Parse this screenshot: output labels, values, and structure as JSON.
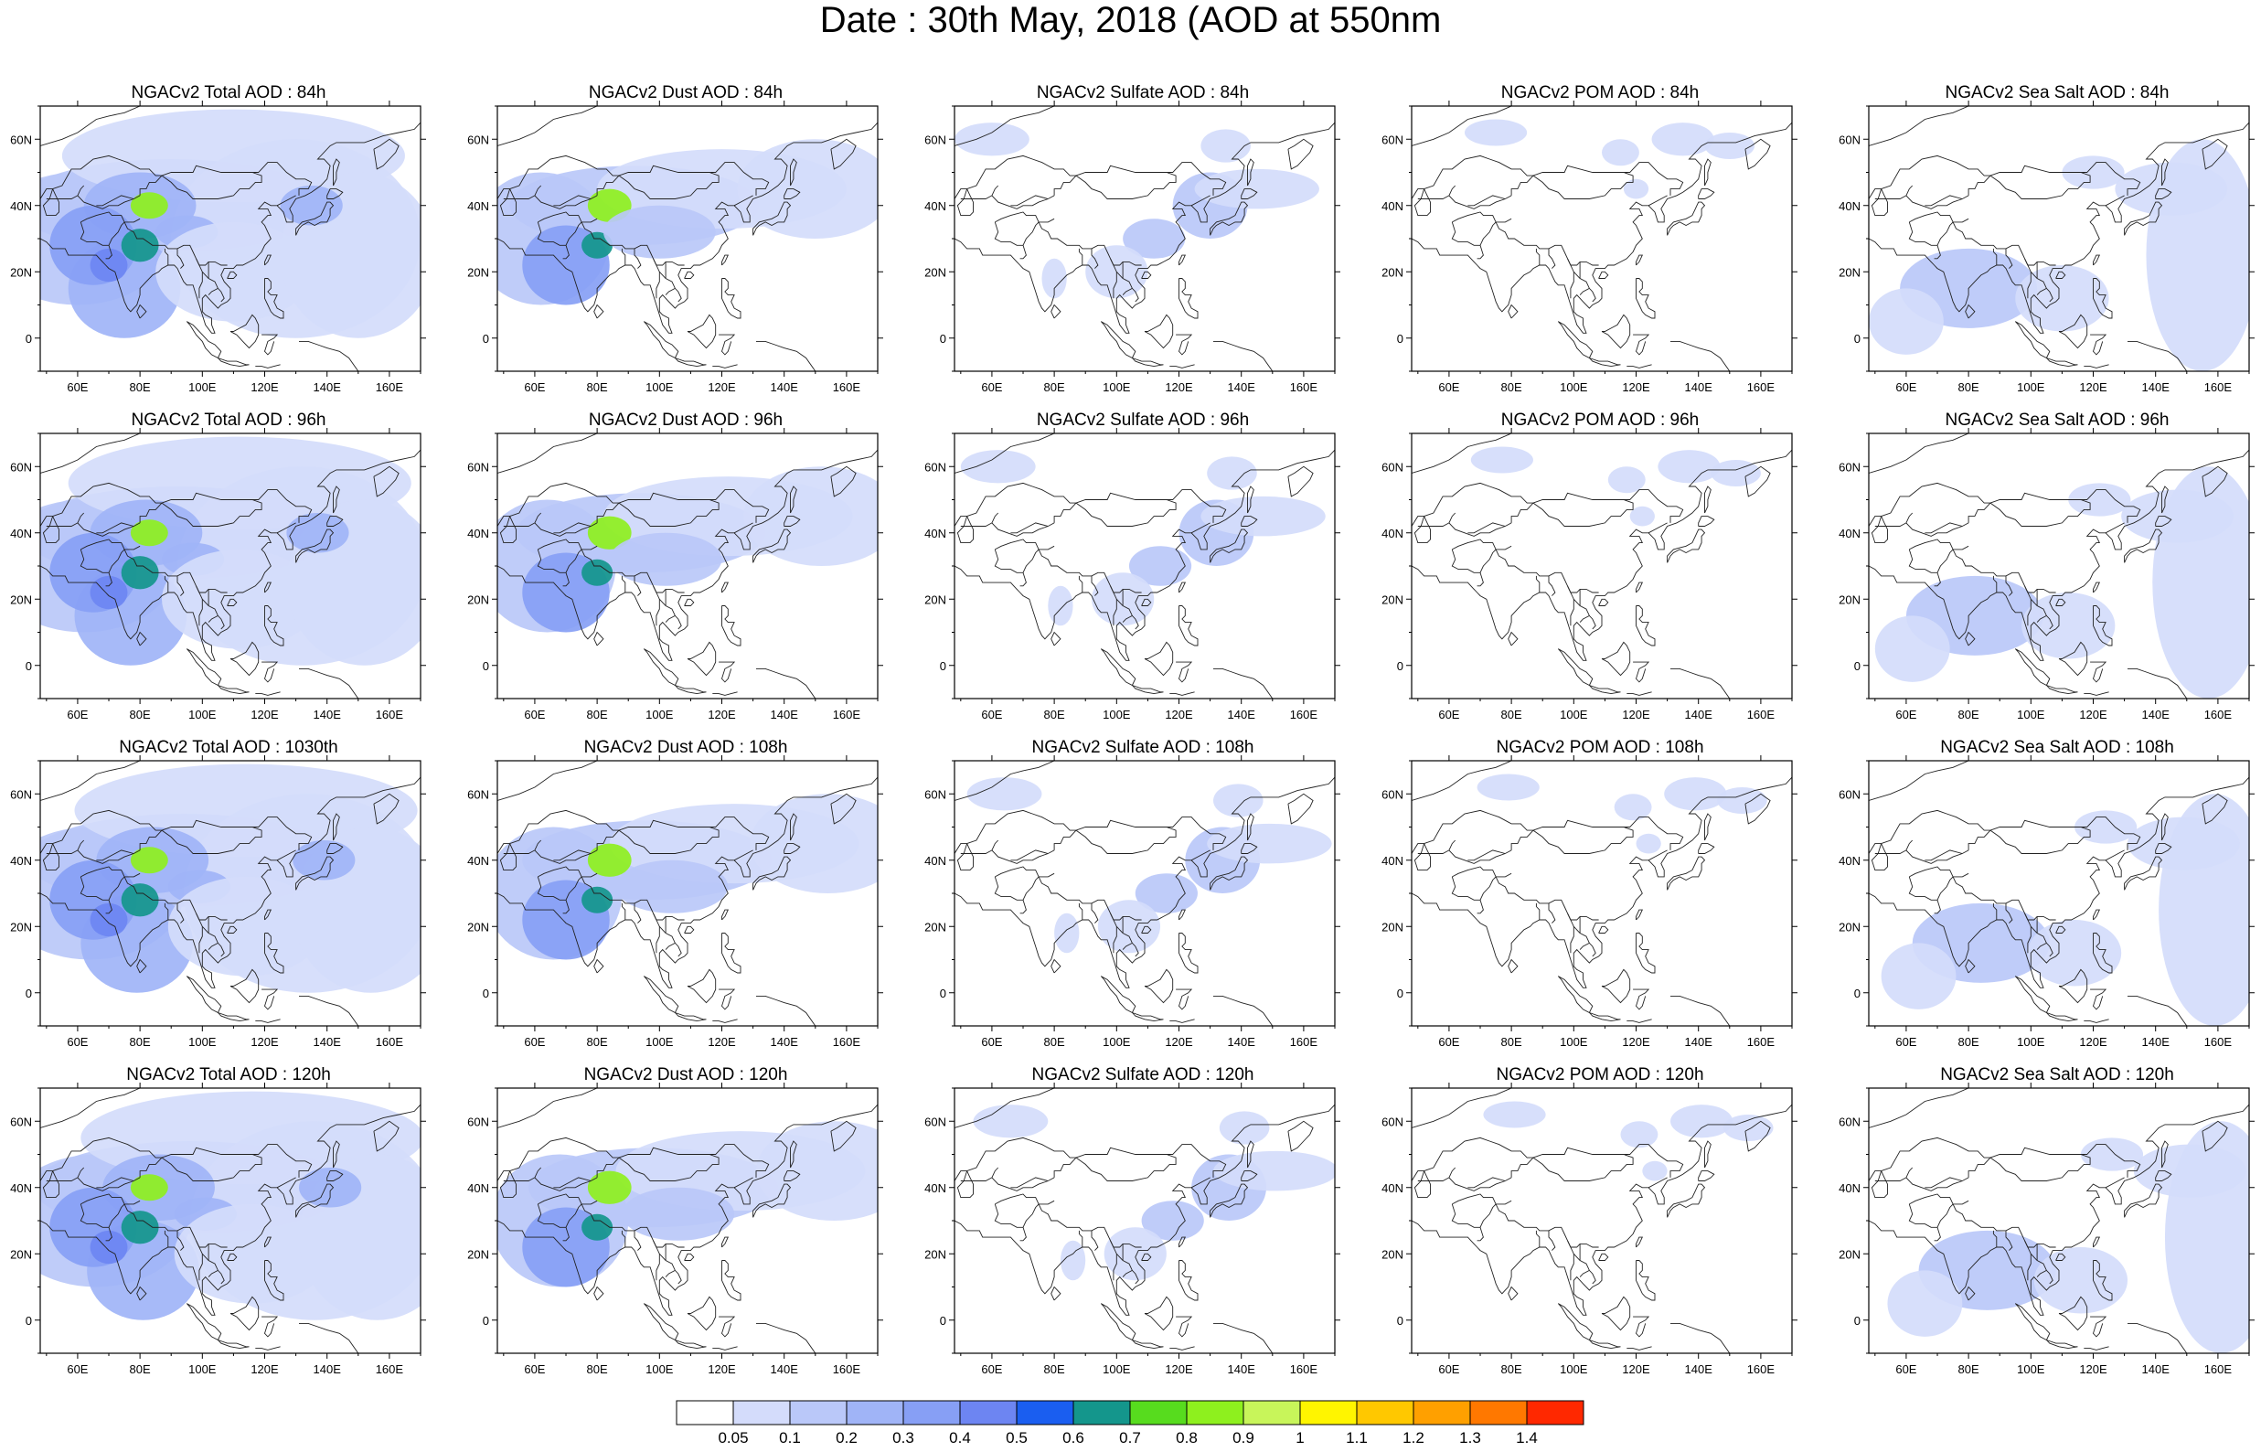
{
  "title": "Date : 30th May, 2018 (AOD at 550nm",
  "map": {
    "lon_range": [
      48,
      170
    ],
    "lat_range": [
      -10,
      70
    ],
    "lon_ticks": [
      "60E",
      "80E",
      "100E",
      "120E",
      "140E",
      "160E"
    ],
    "lat_ticks": [
      "60N",
      "40N",
      "20N",
      "0"
    ],
    "projection": "cylindrical-equidistant"
  },
  "panels": [
    {
      "title": "NGACv2 Total AOD : 84h",
      "species": "total"
    },
    {
      "title": "NGACv2 Dust AOD : 84h",
      "species": "dust"
    },
    {
      "title": "NGACv2 Sulfate AOD : 84h",
      "species": "sulfate"
    },
    {
      "title": "NGACv2 POM AOD : 84h",
      "species": "pom"
    },
    {
      "title": "NGACv2 Sea Salt AOD : 84h",
      "species": "seasalt"
    },
    {
      "title": "NGACv2 Total AOD : 96h",
      "species": "total"
    },
    {
      "title": "NGACv2 Dust AOD : 96h",
      "species": "dust"
    },
    {
      "title": "NGACv2 Sulfate AOD : 96h",
      "species": "sulfate"
    },
    {
      "title": "NGACv2 POM AOD : 96h",
      "species": "pom"
    },
    {
      "title": "NGACv2 Sea Salt AOD : 96h",
      "species": "seasalt"
    },
    {
      "title": "NGACv2 Total AOD : 1030th",
      "species": "total"
    },
    {
      "title": "NGACv2 Dust AOD : 108h",
      "species": "dust"
    },
    {
      "title": "NGACv2 Sulfate AOD : 108h",
      "species": "sulfate"
    },
    {
      "title": "NGACv2 POM AOD : 108h",
      "species": "pom"
    },
    {
      "title": "NGACv2 Sea Salt AOD : 108h",
      "species": "seasalt"
    },
    {
      "title": "NGACv2 Total AOD : 120h",
      "species": "total"
    },
    {
      "title": "NGACv2 Dust AOD : 120h",
      "species": "dust"
    },
    {
      "title": "NGACv2 Sulfate AOD : 120h",
      "species": "sulfate"
    },
    {
      "title": "NGACv2 POM AOD : 120h",
      "species": "pom"
    },
    {
      "title": "NGACv2 Sea Salt  AOD : 120h",
      "species": "seasalt"
    }
  ],
  "colorbar": {
    "labels": [
      "0.05",
      "0.1",
      "0.2",
      "0.3",
      "0.4",
      "0.5",
      "0.6",
      "0.7",
      "0.8",
      "0.9",
      "1",
      "1.1",
      "1.2",
      "1.3",
      "1.4"
    ],
    "colors": [
      "#ffffff",
      "#d4dcfb",
      "#bac8f9",
      "#a0b4f7",
      "#879ff5",
      "#6d85f2",
      "#1a5ef0",
      "#14968c",
      "#57dc1e",
      "#8ef01e",
      "#c8f55a",
      "#fff500",
      "#ffc800",
      "#ffa000",
      "#ff7800",
      "#ff2800"
    ]
  }
}
